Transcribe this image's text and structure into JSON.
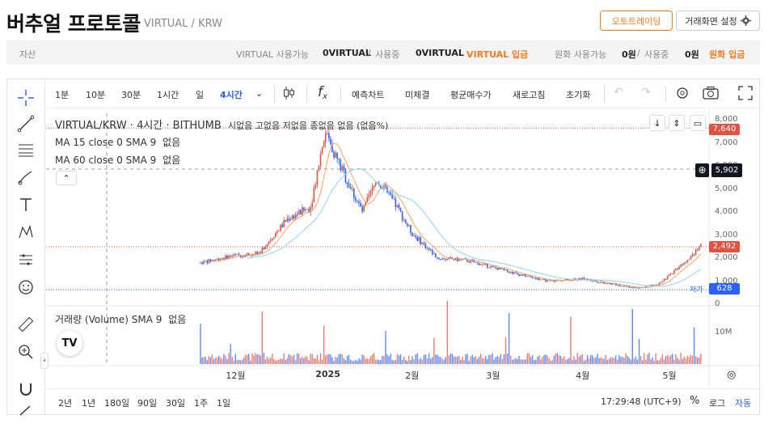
{
  "header": {
    "title": "버추얼 프로토콜",
    "subtitle": "VIRTUAL / KRW",
    "autotrade_label": "오토트레이딩",
    "settings_label": "거래화면 설정"
  },
  "asset_bar": {
    "label": "자산",
    "virtual_available_label": "VIRTUAL 사용가능",
    "virtual_available_value": "0VIRTUAL",
    "slash": "/",
    "in_use_label": "사용중",
    "virtual_in_use_value": "0VIRTUAL",
    "virtual_deposit": "VIRTUAL 입금",
    "krw_available_label": "원화 사용가능",
    "krw_available_value": "0원",
    "krw_in_use_value": "0원",
    "krw_deposit": "원화 입금"
  },
  "toolbar": {
    "intervals": [
      "1분",
      "10분",
      "30분",
      "1시간",
      "일",
      "4시간"
    ],
    "active_interval": "4시간",
    "forecast": "예측차트",
    "unfilled": "미체결",
    "avg_price": "평균매수가",
    "refresh": "새로고침",
    "reset": "초기화"
  },
  "legend": {
    "symbol": "VIRTUAL/KRW · 4시간 · BITHUMB",
    "ohlc": "시없음 고없음 저없음 종없음 없음 (없음%)",
    "ma15": "MA 15 close 0 SMA 9",
    "ma60": "MA 60 close 0 SMA 9",
    "none": "없음",
    "volume": "거래량 (Volume) SMA 9",
    "low_tag": "저가"
  },
  "price_axis": {
    "ticks": [
      "8,000",
      "7,000",
      "6,000",
      "5,000",
      "4,000",
      "3,000",
      "2,000",
      "1,000",
      "0"
    ],
    "high_label": "7,640",
    "cursor_label": "5,902",
    "last_label": "2,492",
    "low_label": "628",
    "volume_tick": "10M"
  },
  "time_axis": {
    "labels": [
      "12월",
      "2025",
      "2월",
      "3월",
      "4월",
      "5월"
    ]
  },
  "timeframes": {
    "ranges": [
      "2년",
      "1년",
      "180일",
      "90일",
      "30일",
      "1주",
      "1일"
    ],
    "clock": "17:29:48 (UTC+9)",
    "percent": "%",
    "log": "로그",
    "auto": "자동"
  },
  "chart_data": {
    "type": "line",
    "title": "",
    "xlabel": "",
    "ylabel": "",
    "x": [
      "2024-11-20",
      "2024-12-01",
      "2024-12-10",
      "2024-12-20",
      "2024-12-28",
      "2025-01-02",
      "2025-01-08",
      "2025-01-15",
      "2025-01-20",
      "2025-01-27",
      "2025-02-01",
      "2025-02-10",
      "2025-02-20",
      "2025-03-01",
      "2025-03-10",
      "2025-03-20",
      "2025-04-01",
      "2025-04-10",
      "2025-04-20",
      "2025-04-28",
      "2025-05-05",
      "2025-05-12"
    ],
    "series": [
      {
        "values": [
          1800,
          2100,
          2200,
          3700,
          4200,
          7500,
          5800,
          4000,
          5400,
          4200,
          3100,
          2000,
          1900,
          1600,
          1300,
          1000,
          1100,
          900,
          700,
          900,
          1700,
          2500
        ]
      }
    ],
    "ylim": [
      0,
      8000
    ],
    "yticks": [
      0,
      1000,
      2000,
      3000,
      4000,
      5000,
      6000,
      7000,
      8000
    ],
    "high": 7640,
    "last": 2492,
    "low": 628,
    "colors": {
      "up": "#e15241",
      "down": "#2962ff",
      "ma15": "#f7a35c",
      "ma60": "#8fd3f4"
    }
  }
}
